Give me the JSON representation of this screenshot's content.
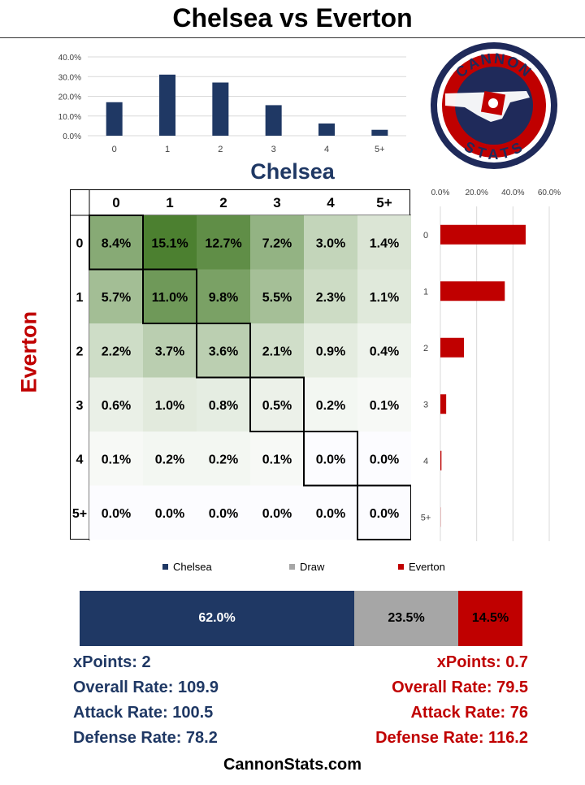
{
  "title": "Chelsea vs Everton",
  "home_team": "Chelsea",
  "away_team": "Everton",
  "colors": {
    "home": "#1f3864",
    "away": "#c00000",
    "draw": "#a6a6a6"
  },
  "logo": {
    "top_text": "CANNON",
    "bottom_text": "STATS"
  },
  "chart_data": [
    {
      "type": "bar",
      "name": "home-goals-distribution",
      "categories": [
        "0",
        "1",
        "2",
        "3",
        "4",
        "5+"
      ],
      "values": [
        17.0,
        31.0,
        27.0,
        15.5,
        6.2,
        3.0
      ],
      "yticks": [
        "0.0%",
        "10.0%",
        "20.0%",
        "30.0%",
        "40.0%"
      ],
      "ylim": [
        0,
        40
      ]
    },
    {
      "type": "bar",
      "orientation": "horizontal",
      "name": "away-goals-distribution",
      "categories": [
        "0",
        "1",
        "2",
        "3",
        "4",
        "5+"
      ],
      "values": [
        47.0,
        35.5,
        13.0,
        3.2,
        0.6,
        0.1
      ],
      "xticks": [
        "0.0%",
        "20.0%",
        "40.0%",
        "60.0%"
      ],
      "xlim": [
        0,
        60
      ]
    },
    {
      "type": "heatmap",
      "name": "scoreline-probabilities",
      "x_categories": [
        "0",
        "1",
        "2",
        "3",
        "4",
        "5+"
      ],
      "y_categories": [
        "0",
        "1",
        "2",
        "3",
        "4",
        "5+"
      ],
      "values": [
        [
          "8.4%",
          "15.1%",
          "12.7%",
          "7.2%",
          "3.0%",
          "1.4%"
        ],
        [
          "5.7%",
          "11.0%",
          "9.8%",
          "5.5%",
          "2.3%",
          "1.1%"
        ],
        [
          "2.2%",
          "3.7%",
          "3.6%",
          "2.1%",
          "0.9%",
          "0.4%"
        ],
        [
          "0.6%",
          "1.0%",
          "0.8%",
          "0.5%",
          "0.2%",
          "0.1%"
        ],
        [
          "0.1%",
          "0.2%",
          "0.2%",
          "0.1%",
          "0.0%",
          "0.0%"
        ],
        [
          "0.0%",
          "0.0%",
          "0.0%",
          "0.0%",
          "0.0%",
          "0.0%"
        ]
      ]
    },
    {
      "type": "bar",
      "orientation": "stacked-horizontal",
      "name": "result-probabilities",
      "series": [
        {
          "name": "Chelsea",
          "value": 62.0,
          "label": "62.0%"
        },
        {
          "name": "Draw",
          "value": 23.5,
          "label": "23.5%"
        },
        {
          "name": "Everton",
          "value": 14.5,
          "label": "14.5%"
        }
      ]
    }
  ],
  "home_stats": [
    "xPoints: 2",
    "Overall Rate: 109.9",
    "Attack Rate: 100.5",
    "Defense Rate: 78.2"
  ],
  "away_stats": [
    "xPoints: 0.7",
    "Overall Rate: 79.5",
    "Attack Rate: 76",
    "Defense Rate: 116.2"
  ],
  "footer": "CannonStats.com"
}
